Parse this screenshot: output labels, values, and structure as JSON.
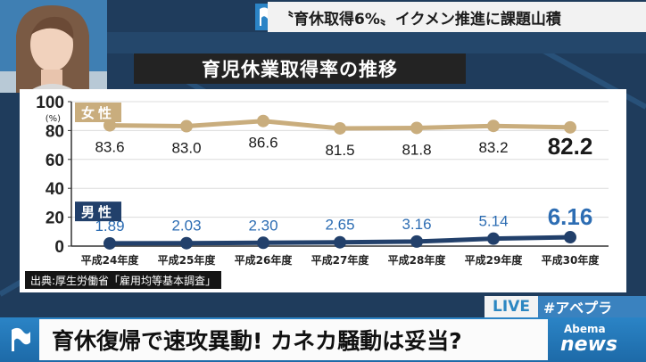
{
  "top_caption": "〝育休取得6%〟イクメン推進に課題山積",
  "chart_title": "育児休業取得率の推移",
  "source_note": "出典:厚生労働省「雇用均等基本調査」",
  "live_badge": "LIVE",
  "hashtag": "#アベプラ",
  "headline": "育休復帰で速攻異動! カネカ騒動は妥当?",
  "logo_small": "Abema",
  "logo_big": "news",
  "chart_data": {
    "type": "line",
    "title": "育児休業取得率の推移",
    "ylabel": "(%)",
    "ylim": [
      0,
      100
    ],
    "yticks": [
      0,
      20,
      40,
      60,
      80,
      100
    ],
    "categories": [
      "平成24年度",
      "平成25年度",
      "平成26年度",
      "平成27年度",
      "平成28年度",
      "平成29年度",
      "平成30年度"
    ],
    "series": [
      {
        "name": "女性",
        "color": "#c9ad7d",
        "label_color": "#1a1a1a",
        "values": [
          83.6,
          83.0,
          86.6,
          81.5,
          81.8,
          83.2,
          82.2
        ],
        "labels": [
          "83.6",
          "83.0",
          "86.6",
          "81.5",
          "81.8",
          "83.2",
          "82.2"
        ]
      },
      {
        "name": "男性",
        "color": "#22406b",
        "label_color": "#2d6db3",
        "values": [
          1.89,
          2.03,
          2.3,
          2.65,
          3.16,
          5.14,
          6.16
        ],
        "labels": [
          "1.89",
          "2.03",
          "2.30",
          "2.65",
          "3.16",
          "5.14",
          "6.16"
        ]
      }
    ],
    "grid": true
  }
}
